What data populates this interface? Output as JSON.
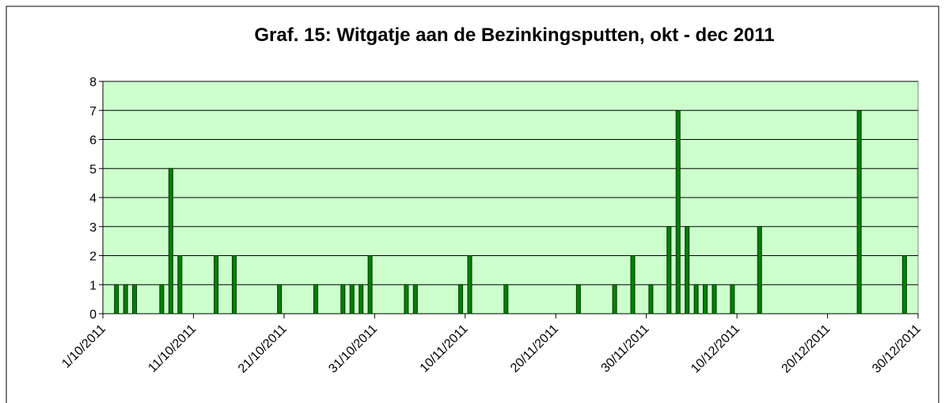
{
  "chart_data": {
    "type": "bar",
    "title": "Graf. 15: Witgatje aan de Bezinkingsputten, okt - dec 2011",
    "x": [
      "2/10/2011",
      "3/10/2011",
      "4/10/2011",
      "7/10/2011",
      "8/10/2011",
      "9/10/2011",
      "13/10/2011",
      "15/10/2011",
      "20/10/2011",
      "24/10/2011",
      "27/10/2011",
      "28/10/2011",
      "29/10/2011",
      "30/10/2011",
      "3/11/2011",
      "4/11/2011",
      "9/11/2011",
      "10/11/2011",
      "14/11/2011",
      "22/11/2011",
      "26/11/2011",
      "28/11/2011",
      "30/11/2011",
      "2/12/2011",
      "3/12/2011",
      "4/12/2011",
      "5/12/2011",
      "6/12/2011",
      "7/12/2011",
      "9/12/2011",
      "12/12/2011",
      "23/12/2011",
      "28/12/2011"
    ],
    "values": [
      1,
      1,
      1,
      1,
      5,
      2,
      2,
      2,
      1,
      1,
      1,
      1,
      1,
      2,
      1,
      1,
      1,
      2,
      1,
      1,
      1,
      2,
      1,
      3,
      7,
      3,
      1,
      1,
      1,
      1,
      3,
      7,
      2
    ],
    "color": "#008000",
    "xlim": [
      "1/10/2011",
      "30/12/2011"
    ],
    "xticks": [
      "1/10/2011",
      "11/10/2011",
      "21/10/2011",
      "31/10/2011",
      "10/11/2011",
      "20/11/2011",
      "30/11/2011",
      "10/12/2011",
      "20/12/2011",
      "30/12/2011"
    ],
    "ylim": [
      0,
      8
    ],
    "yticks": [
      0,
      1,
      2,
      3,
      4,
      5,
      6,
      7,
      8
    ],
    "grid": true,
    "background": "#ccffcc"
  }
}
